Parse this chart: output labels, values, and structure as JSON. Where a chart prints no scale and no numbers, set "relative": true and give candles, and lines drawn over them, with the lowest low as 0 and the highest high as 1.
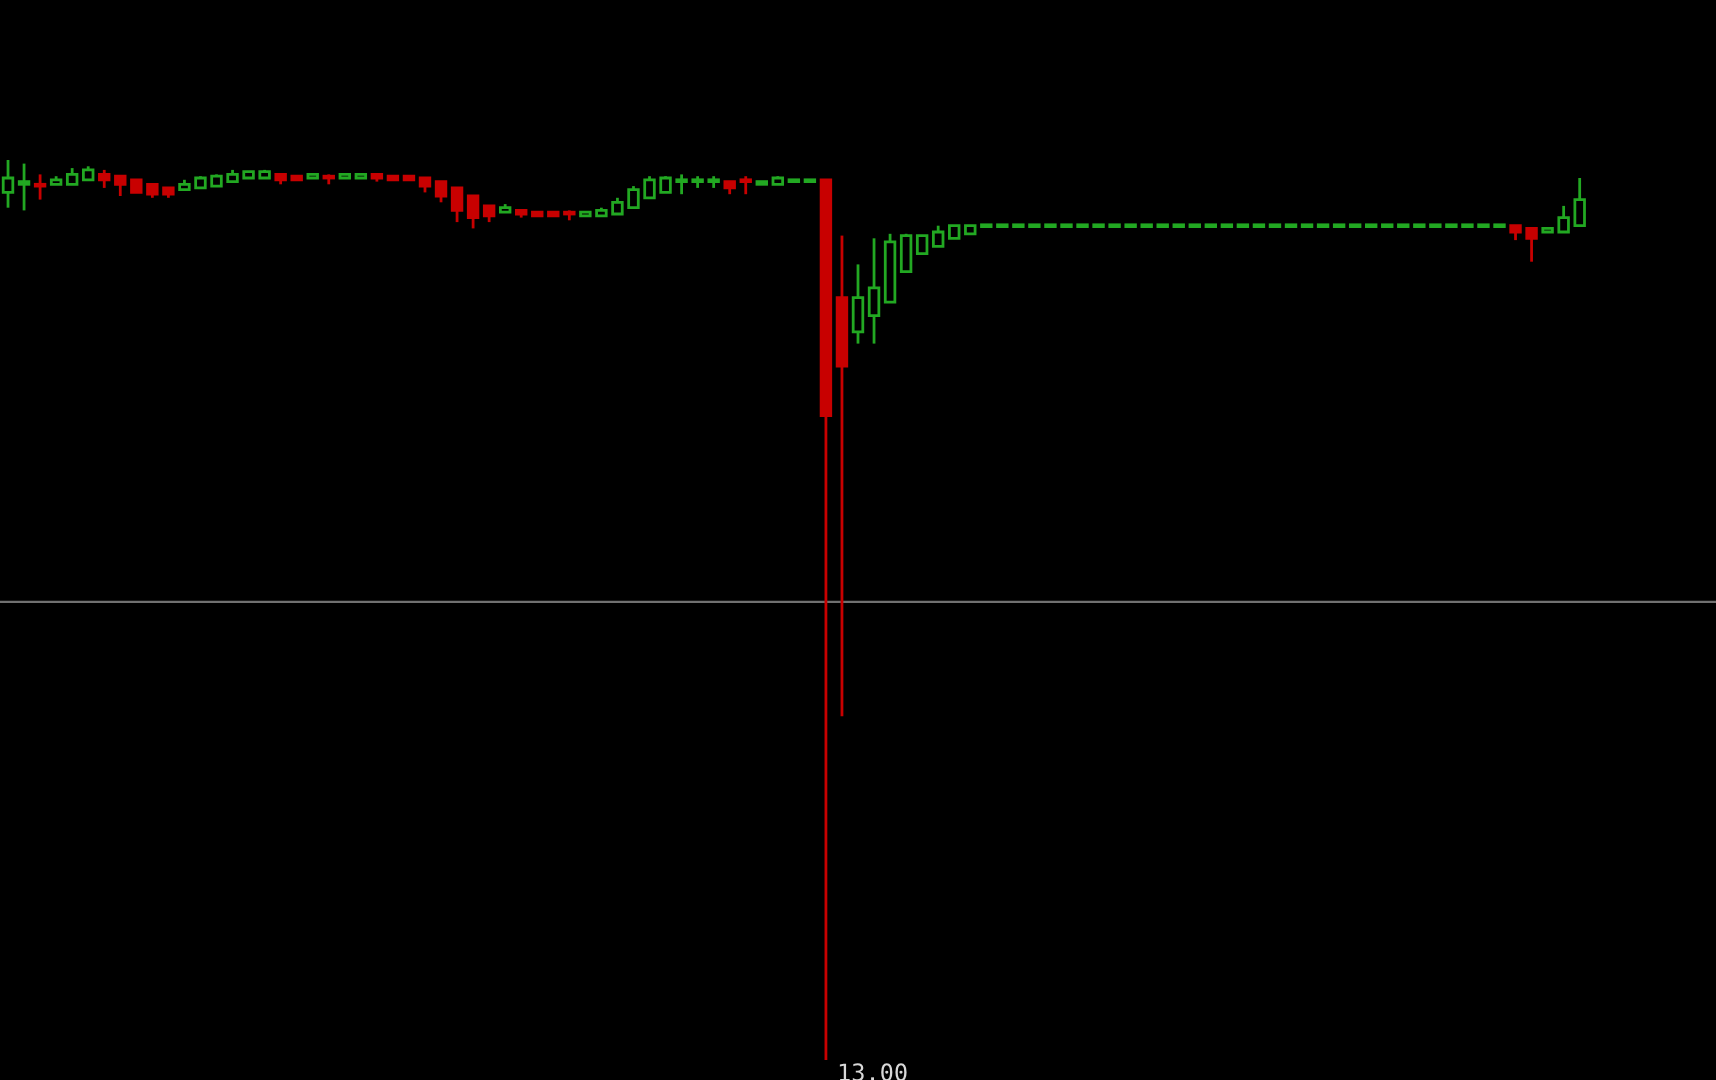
{
  "chart_data": {
    "type": "candlestick",
    "relative": true,
    "categories": [
      null,
      null,
      null,
      null,
      null,
      null,
      null,
      null,
      null,
      null,
      null,
      null,
      null,
      null,
      null,
      null,
      null,
      null,
      null,
      null,
      null,
      null,
      null,
      null,
      null,
      null,
      null,
      null,
      null,
      null,
      null,
      null,
      null,
      null,
      null,
      null,
      null,
      null,
      null,
      null,
      null,
      null,
      null,
      null,
      null,
      null,
      null,
      null,
      null,
      null,
      null,
      null,
      null,
      null,
      null,
      null,
      null,
      null,
      null,
      null,
      null,
      null,
      null,
      null,
      null,
      null,
      null,
      null,
      null,
      null,
      null,
      null,
      null,
      null,
      null,
      null,
      null,
      null,
      null,
      null,
      null,
      null,
      null,
      null,
      null,
      null,
      null,
      null,
      null,
      null,
      null,
      null,
      null,
      null,
      null,
      null,
      null,
      null,
      null
    ],
    "ohlc": [
      [
        0.964,
        1.0,
        0.947,
        0.98
      ],
      [
        0.973,
        0.996,
        0.944,
        0.976
      ],
      [
        0.973,
        0.984,
        0.956,
        0.971
      ],
      [
        0.973,
        0.982,
        0.973,
        0.978
      ],
      [
        0.973,
        0.991,
        0.973,
        0.984
      ],
      [
        0.978,
        0.993,
        0.978,
        0.989
      ],
      [
        0.984,
        0.989,
        0.969,
        0.978
      ],
      [
        0.982,
        0.982,
        0.96,
        0.973
      ],
      [
        0.978,
        0.978,
        0.964,
        0.964
      ],
      [
        0.973,
        0.973,
        0.958,
        0.962
      ],
      [
        0.969,
        0.969,
        0.958,
        0.962
      ],
      [
        0.967,
        0.978,
        0.967,
        0.973
      ],
      [
        0.969,
        0.982,
        0.969,
        0.98
      ],
      [
        0.971,
        0.984,
        0.971,
        0.982
      ],
      [
        0.976,
        0.989,
        0.976,
        0.984
      ],
      [
        0.98,
        0.987,
        0.98,
        0.987
      ],
      [
        0.98,
        0.989,
        0.98,
        0.987
      ],
      [
        0.984,
        0.984,
        0.973,
        0.978
      ],
      [
        0.982,
        0.982,
        0.978,
        0.978
      ],
      [
        0.98,
        0.984,
        0.98,
        0.984
      ],
      [
        0.982,
        0.984,
        0.973,
        0.98
      ],
      [
        0.98,
        0.984,
        0.98,
        0.984
      ],
      [
        0.98,
        0.984,
        0.98,
        0.984
      ],
      [
        0.984,
        0.984,
        0.976,
        0.98
      ],
      [
        0.982,
        0.982,
        0.978,
        0.978
      ],
      [
        0.982,
        0.982,
        0.978,
        0.978
      ],
      [
        0.98,
        0.98,
        0.964,
        0.971
      ],
      [
        0.976,
        0.976,
        0.953,
        0.96
      ],
      [
        0.969,
        0.969,
        0.931,
        0.944
      ],
      [
        0.96,
        0.96,
        0.924,
        0.936
      ],
      [
        0.949,
        0.949,
        0.931,
        0.938
      ],
      [
        0.942,
        0.951,
        0.942,
        0.947
      ],
      [
        0.944,
        0.944,
        0.936,
        0.94
      ],
      [
        0.942,
        0.942,
        0.938,
        0.938
      ],
      [
        0.942,
        0.942,
        0.938,
        0.938
      ],
      [
        0.942,
        0.944,
        0.933,
        0.94
      ],
      [
        0.938,
        0.942,
        0.938,
        0.942
      ],
      [
        0.938,
        0.947,
        0.938,
        0.944
      ],
      [
        0.94,
        0.958,
        0.94,
        0.953
      ],
      [
        0.947,
        0.971,
        0.947,
        0.967
      ],
      [
        0.958,
        0.982,
        0.958,
        0.978
      ],
      [
        0.964,
        0.982,
        0.964,
        0.98
      ],
      [
        0.976,
        0.984,
        0.962,
        0.978
      ],
      [
        0.976,
        0.982,
        0.969,
        0.978
      ],
      [
        0.976,
        0.982,
        0.969,
        0.978
      ],
      [
        0.976,
        0.976,
        0.962,
        0.969
      ],
      [
        0.978,
        0.982,
        0.962,
        0.976
      ],
      [
        0.973,
        0.976,
        0.973,
        0.976
      ],
      [
        0.973,
        0.982,
        0.973,
        0.98
      ],
      [
        0.976,
        0.978,
        0.976,
        0.978
      ],
      [
        0.976,
        0.978,
        0.976,
        0.978
      ],
      [
        0.978,
        0.978,
        0.0,
        0.716
      ],
      [
        0.847,
        0.916,
        0.382,
        0.771
      ],
      [
        0.809,
        0.884,
        0.796,
        0.847
      ],
      [
        0.827,
        0.913,
        0.796,
        0.858
      ],
      [
        0.842,
        0.918,
        0.842,
        0.909
      ],
      [
        0.876,
        0.918,
        0.876,
        0.916
      ],
      [
        0.896,
        0.916,
        0.896,
        0.916
      ],
      [
        0.904,
        0.927,
        0.904,
        0.92
      ],
      [
        0.913,
        0.927,
        0.913,
        0.927
      ],
      [
        0.918,
        0.927,
        0.918,
        0.927
      ],
      [
        0.926,
        0.927,
        0.926,
        0.927
      ],
      [
        0.926,
        0.927,
        0.926,
        0.927
      ],
      [
        0.926,
        0.927,
        0.926,
        0.927
      ],
      [
        0.926,
        0.927,
        0.926,
        0.927
      ],
      [
        0.926,
        0.927,
        0.926,
        0.927
      ],
      [
        0.926,
        0.927,
        0.926,
        0.927
      ],
      [
        0.926,
        0.927,
        0.926,
        0.927
      ],
      [
        0.926,
        0.927,
        0.926,
        0.927
      ],
      [
        0.926,
        0.927,
        0.926,
        0.927
      ],
      [
        0.926,
        0.927,
        0.926,
        0.927
      ],
      [
        0.926,
        0.927,
        0.926,
        0.927
      ],
      [
        0.926,
        0.927,
        0.926,
        0.927
      ],
      [
        0.926,
        0.927,
        0.926,
        0.927
      ],
      [
        0.926,
        0.927,
        0.926,
        0.927
      ],
      [
        0.926,
        0.927,
        0.926,
        0.927
      ],
      [
        0.926,
        0.927,
        0.926,
        0.927
      ],
      [
        0.926,
        0.927,
        0.926,
        0.927
      ],
      [
        0.926,
        0.927,
        0.926,
        0.927
      ],
      [
        0.926,
        0.927,
        0.926,
        0.927
      ],
      [
        0.926,
        0.927,
        0.926,
        0.927
      ],
      [
        0.926,
        0.927,
        0.926,
        0.927
      ],
      [
        0.926,
        0.927,
        0.926,
        0.927
      ],
      [
        0.926,
        0.927,
        0.926,
        0.927
      ],
      [
        0.926,
        0.927,
        0.926,
        0.927
      ],
      [
        0.926,
        0.927,
        0.926,
        0.927
      ],
      [
        0.926,
        0.927,
        0.926,
        0.927
      ],
      [
        0.926,
        0.927,
        0.926,
        0.927
      ],
      [
        0.926,
        0.927,
        0.926,
        0.927
      ],
      [
        0.926,
        0.927,
        0.926,
        0.927
      ],
      [
        0.926,
        0.927,
        0.926,
        0.927
      ],
      [
        0.926,
        0.927,
        0.926,
        0.927
      ],
      [
        0.926,
        0.927,
        0.926,
        0.927
      ],
      [
        0.926,
        0.927,
        0.926,
        0.927
      ],
      [
        0.927,
        0.927,
        0.911,
        0.92
      ],
      [
        0.924,
        0.924,
        0.887,
        0.913
      ],
      [
        0.92,
        0.924,
        0.92,
        0.924
      ],
      [
        0.92,
        0.949,
        0.92,
        0.936
      ],
      [
        0.927,
        0.98,
        0.927,
        0.956
      ]
    ],
    "colors": [
      "#22a822",
      "#22a822",
      "#c80000",
      "#22a822",
      "#22a822",
      "#22a822",
      "#c80000",
      "#c80000",
      "#c80000",
      "#c80000",
      "#c80000",
      "#22a822",
      "#22a822",
      "#22a822",
      "#22a822",
      "#22a822",
      "#22a822",
      "#c80000",
      "#c80000",
      "#22a822",
      "#c80000",
      "#22a822",
      "#22a822",
      "#c80000",
      "#c80000",
      "#c80000",
      "#c80000",
      "#c80000",
      "#c80000",
      "#c80000",
      "#c80000",
      "#22a822",
      "#c80000",
      "#c80000",
      "#c80000",
      "#c80000",
      "#22a822",
      "#22a822",
      "#22a822",
      "#22a822",
      "#22a822",
      "#22a822",
      "#22a822",
      "#22a822",
      "#22a822",
      "#c80000",
      "#c80000",
      "#22a822",
      "#22a822",
      "#22a822",
      "#22a822",
      "#c80000",
      "#c80000",
      "#22a822",
      "#22a822",
      "#22a822",
      "#22a822",
      "#22a822",
      "#22a822",
      "#22a822",
      "#22a822",
      "#22a822",
      "#22a822",
      "#22a822",
      "#22a822",
      "#22a822",
      "#22a822",
      "#22a822",
      "#22a822",
      "#22a822",
      "#22a822",
      "#22a822",
      "#22a822",
      "#22a822",
      "#22a822",
      "#22a822",
      "#22a822",
      "#22a822",
      "#22a822",
      "#22a822",
      "#22a822",
      "#22a822",
      "#22a822",
      "#22a822",
      "#22a822",
      "#22a822",
      "#22a822",
      "#22a822",
      "#22a822",
      "#22a822",
      "#22a822",
      "#22a822",
      "#22a822",
      "#22a822",
      "#c80000",
      "#c80000",
      "#22a822",
      "#22a822",
      "#22a822"
    ],
    "ref_lines": [
      {
        "axis": "y",
        "value": 0.509,
        "color": "#707070"
      }
    ],
    "annotations": [
      "13.00"
    ]
  }
}
